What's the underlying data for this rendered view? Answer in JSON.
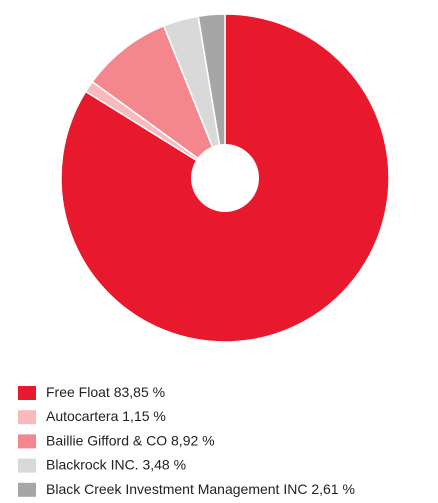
{
  "chart_data": {
    "type": "pie",
    "categories": [
      "Free Float",
      "Autocartera",
      "Baillie Gifford & CO",
      "Blackrock INC.",
      "Black Creek Investment Management INC"
    ],
    "values": [
      83.85,
      1.15,
      8.92,
      3.48,
      2.61
    ],
    "value_labels": [
      "83,85 %",
      "1,15 %",
      "8,92 %",
      "3,48 %",
      "2,61 %"
    ],
    "colors": [
      "#e8192c",
      "#f9b9bd",
      "#f4868e",
      "#d9d9d9",
      "#a6a6a6"
    ],
    "legend": "bottom"
  }
}
